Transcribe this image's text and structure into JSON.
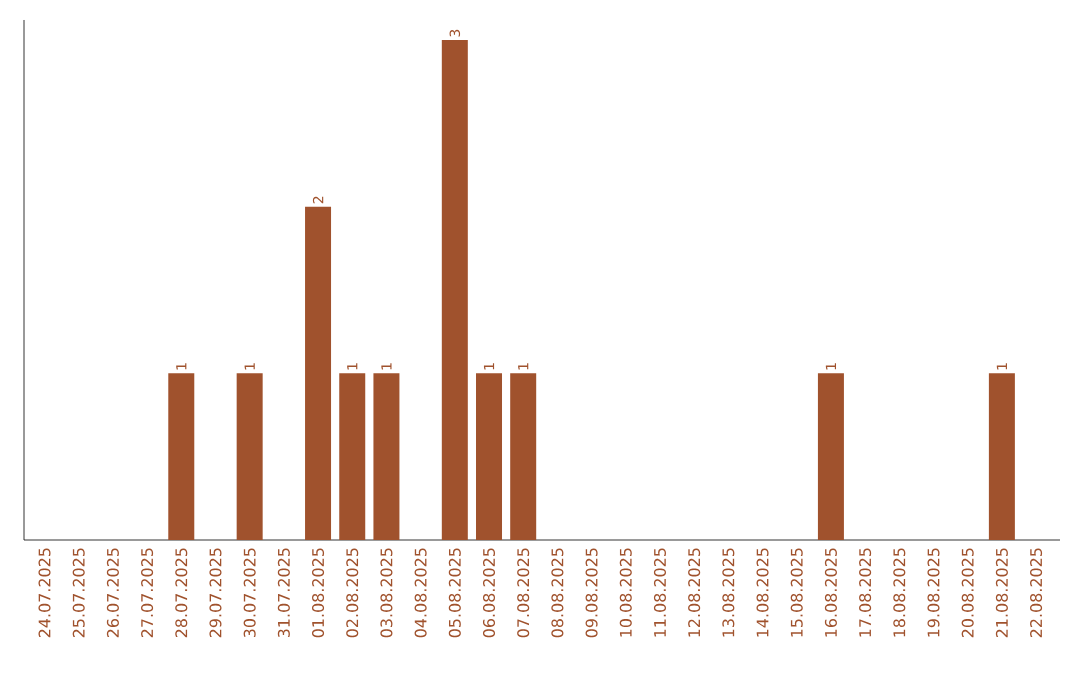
{
  "chart_data": {
    "type": "bar",
    "color": "#a0522d",
    "categories": [
      "24.07.2025",
      "25.07.2025",
      "26.07.2025",
      "27.07.2025",
      "28.07.2025",
      "29.07.2025",
      "30.07.2025",
      "31.07.2025",
      "01.08.2025",
      "02.08.2025",
      "03.08.2025",
      "04.08.2025",
      "05.08.2025",
      "06.08.2025",
      "07.08.2025",
      "08.08.2025",
      "09.08.2025",
      "10.08.2025",
      "11.08.2025",
      "12.08.2025",
      "13.08.2025",
      "14.08.2025",
      "15.08.2025",
      "16.08.2025",
      "17.08.2025",
      "18.08.2025",
      "19.08.2025",
      "20.08.2025",
      "21.08.2025",
      "22.08.2025"
    ],
    "values": [
      0,
      0,
      0,
      0,
      1,
      0,
      1,
      0,
      2,
      1,
      1,
      0,
      3,
      1,
      1,
      0,
      0,
      0,
      0,
      0,
      0,
      0,
      0,
      1,
      0,
      0,
      0,
      0,
      1,
      0
    ],
    "value_labels": [
      null,
      null,
      null,
      null,
      "1",
      null,
      "1",
      null,
      "2",
      "1",
      "1",
      null,
      "3",
      "1",
      "1",
      null,
      null,
      null,
      null,
      null,
      null,
      null,
      null,
      "1",
      null,
      null,
      null,
      null,
      "1",
      null
    ],
    "tick_labels": "x"
  }
}
